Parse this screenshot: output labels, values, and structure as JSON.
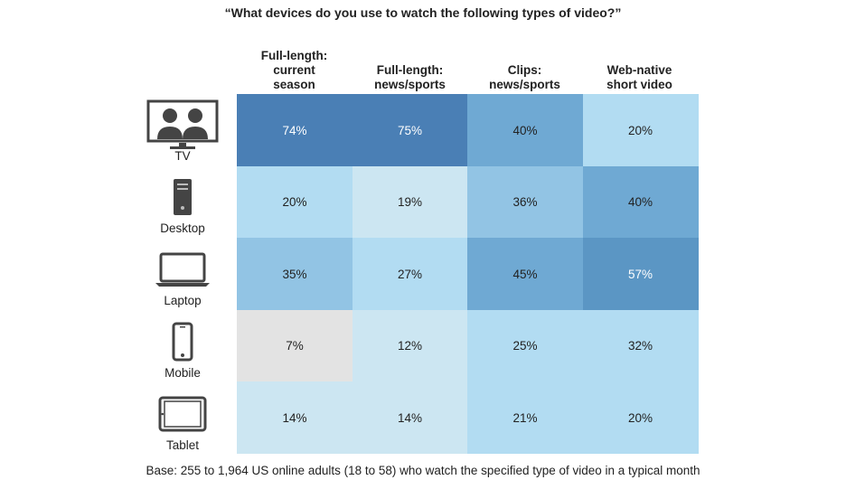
{
  "chart_data": {
    "type": "heatmap",
    "title": "“What devices do you use to watch the following types of video?”",
    "columns": [
      "Full-length:\ncurrent\nseason",
      "Full-length:\nnews/sports",
      "Clips:\nnews/sports",
      "Web-native\nshort video"
    ],
    "rows": [
      {
        "label": "TV",
        "icon": "tv-icon",
        "values": [
          74,
          75,
          40,
          20
        ]
      },
      {
        "label": "Desktop",
        "icon": "desktop-tower-icon",
        "values": [
          20,
          19,
          36,
          40
        ]
      },
      {
        "label": "Laptop",
        "icon": "laptop-icon",
        "values": [
          35,
          27,
          45,
          57
        ]
      },
      {
        "label": "Mobile",
        "icon": "mobile-phone-icon",
        "values": [
          7,
          12,
          25,
          32
        ]
      },
      {
        "label": "Tablet",
        "icon": "tablet-icon",
        "values": [
          14,
          14,
          21,
          20
        ]
      }
    ],
    "value_suffix": "%",
    "footnote": "Base: 255 to 1,964 US online adults (18 to 58) who watch the specified type of video in a typical month",
    "color_scale": [
      {
        "min": 60,
        "color": "#4a7fb5",
        "text": "#ffffff"
      },
      {
        "min": 50,
        "color": "#5b96c4",
        "text": "#ffffff"
      },
      {
        "min": 40,
        "color": "#6fa9d3",
        "text": "#222222"
      },
      {
        "min": 33,
        "color": "#92c4e4",
        "text": "#222222"
      },
      {
        "min": 20,
        "color": "#b2dcf2",
        "text": "#222222"
      },
      {
        "min": 10,
        "color": "#cce6f2",
        "text": "#222222"
      },
      {
        "min": 0,
        "color": "#e3e3e3",
        "text": "#222222"
      }
    ]
  }
}
